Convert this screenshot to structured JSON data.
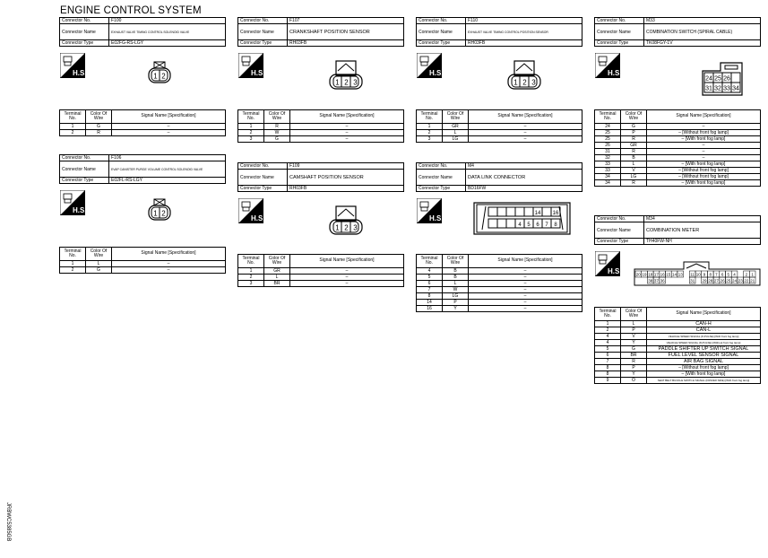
{
  "title": "ENGINE CONTROL SYSTEM",
  "side_code": "JRBWC5385GB",
  "labels": {
    "connector_no": "Connector No.",
    "connector_name": "Connector Name",
    "connector_type": "Connector Type",
    "terminal_no": "Terminal No.",
    "color_of_wire": "Color Of Wire",
    "signal_name": "Signal Name [Specification]",
    "hs": "H.S."
  },
  "connectors": [
    {
      "id": "F100",
      "no": "F100",
      "name": "EXHAUST VALVE TIMING CONTROL SOLENOID VALVE",
      "name_size": "small",
      "type": "E02FG-RS-LGY",
      "diagram": "pin2",
      "pins": [
        "1",
        "2"
      ],
      "rows": [
        [
          "1",
          "G",
          "–"
        ],
        [
          "2",
          "R",
          "–"
        ]
      ]
    },
    {
      "id": "F106",
      "no": "F106",
      "name": "EVAP CANISTER PURGE VOLUME CONTROL SOLENOID VALVE",
      "name_size": "small",
      "type": "E02FL-RS-LGY",
      "diagram": "pin2",
      "pins": [
        "1",
        "2"
      ],
      "rows": [
        [
          "1",
          "L",
          "–"
        ],
        [
          "2",
          "G",
          "–"
        ]
      ]
    },
    {
      "id": "F107",
      "no": "F107",
      "name": "CRANKSHAFT POSITION SENSOR",
      "name_size": "big",
      "type": "RH03FB",
      "diagram": "pin3",
      "pins": [
        "1",
        "2",
        "3"
      ],
      "rows": [
        [
          "1",
          "R",
          "–"
        ],
        [
          "2",
          "W",
          "–"
        ],
        [
          "3",
          "G",
          "–"
        ]
      ]
    },
    {
      "id": "F109",
      "no": "F109",
      "name": "CAMSHAFT POSITION SENSOR",
      "name_size": "big",
      "type": "RH03FB",
      "diagram": "pin3",
      "pins": [
        "1",
        "2",
        "3"
      ],
      "rows": [
        [
          "1",
          "GR",
          "–"
        ],
        [
          "2",
          "L",
          "–"
        ],
        [
          "3",
          "BR",
          "–"
        ]
      ]
    },
    {
      "id": "F110",
      "no": "F110",
      "name": "EXHAUST VALVE TIMING CONTROL POSITION SENSOR",
      "name_size": "small",
      "type": "RH03FB",
      "diagram": "pin3",
      "pins": [
        "1",
        "2",
        "3"
      ],
      "rows": [
        [
          "1",
          "GR",
          "–"
        ],
        [
          "2",
          "L",
          "–"
        ],
        [
          "3",
          "LG",
          "–"
        ]
      ]
    },
    {
      "id": "M4",
      "no": "M4",
      "name": "DATA LINK CONNECTOR",
      "name_size": "big",
      "type": "BD16FW",
      "diagram": "dlc",
      "pins": [
        "14",
        "16",
        "4",
        "5",
        "6",
        "7",
        "8"
      ],
      "rows": [
        [
          "4",
          "B",
          "–"
        ],
        [
          "5",
          "B",
          "–"
        ],
        [
          "6",
          "L",
          "–"
        ],
        [
          "7",
          "W",
          "–"
        ],
        [
          "8",
          "LG",
          "–"
        ],
        [
          "14",
          "P",
          "–"
        ],
        [
          "16",
          "Y",
          "–"
        ]
      ]
    },
    {
      "id": "M33",
      "no": "M33",
      "name": "COMBINATION SWITCH (SPIRAL CABLE)",
      "name_size": "mid",
      "type": "TK08FGY-1V",
      "diagram": "m33",
      "pins": [
        "24",
        "25",
        "26",
        "31",
        "32",
        "33",
        "34"
      ],
      "rows": [
        [
          "24",
          "G",
          "–"
        ],
        [
          "25",
          "P",
          "– [Without front fog lamp]"
        ],
        [
          "25",
          "R",
          "– [With front fog lamp]"
        ],
        [
          "26",
          "GR",
          "–"
        ],
        [
          "31",
          "R",
          "–"
        ],
        [
          "32",
          "B",
          "–"
        ],
        [
          "33",
          "L",
          "– [With front fog lamp]"
        ],
        [
          "33",
          "V",
          "– [Without front fog lamp]"
        ],
        [
          "34",
          "LG",
          "– [Without front fog lamp]"
        ],
        [
          "34",
          "R",
          "– [With front fog lamp]"
        ]
      ]
    },
    {
      "id": "M34",
      "no": "M34",
      "name": "COMBINATION METER",
      "name_size": "big",
      "type": "TH40FW-NH",
      "diagram": "m34",
      "pins": [
        "20",
        "19",
        "18",
        "17",
        "16",
        "15",
        "14",
        "13",
        "11",
        "10",
        "9",
        "8",
        "7",
        "6",
        "5",
        "4",
        "2",
        "1",
        "38",
        "37",
        "36",
        "31",
        "29",
        "28",
        "27",
        "26",
        "25",
        "24",
        "23",
        "22",
        "21"
      ],
      "rows": [
        [
          "1",
          "L",
          "CAN-H"
        ],
        [
          "2",
          "P",
          "CAN-L"
        ],
        [
          "4",
          "V",
          "VEHICLE SPEED SIGNAL (8-PULSE) [With front fog lamp]"
        ],
        [
          "4",
          "Y",
          "VEHICLE SPEED SIGNAL (8-PULSE) [Without front fog lamp]"
        ],
        [
          "5",
          "G",
          "PADDLE SHIFTER UP SWITCH SIGNAL"
        ],
        [
          "6",
          "BR",
          "FUEL LEVEL SENSOR SIGNAL"
        ],
        [
          "7",
          "R",
          "AIR BAG SIGNAL"
        ],
        [
          "8",
          "P",
          "– [Without front fog lamp]"
        ],
        [
          "8",
          "Y",
          "– [With front fog lamp]"
        ],
        [
          "9",
          "O",
          "SEAT BELT BUCKLE SWITCH SIGNAL (DRIVER SIDE) [With front fog lamp]"
        ]
      ]
    }
  ]
}
